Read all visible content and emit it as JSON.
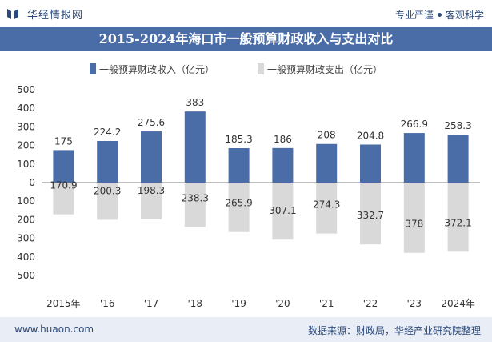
{
  "header": {
    "brand": "华经情报网",
    "tagline_left": "专业严谨",
    "tagline_right": "客观科学"
  },
  "colors": {
    "title_bar": "#4a6da8",
    "income": "#4a6da8",
    "expense": "#d9d9d9",
    "footer_bg": "#e9eef6",
    "brand": "#2c4a7c"
  },
  "footer": {
    "url": "www.huaon.com",
    "source": "数据来源：财政局，华经产业研究院整理"
  },
  "chart_data": {
    "type": "bar",
    "title": "2015-2024年海口市一般预算财政收入与支出对比",
    "categories": [
      "2015年",
      "'16",
      "'17",
      "'18",
      "'19",
      "'20",
      "'21",
      "'22",
      "'23",
      "2024年"
    ],
    "series": [
      {
        "name": "一般预算财政收入（亿元）",
        "values": [
          175,
          224.2,
          275.6,
          383,
          185.3,
          186,
          208,
          204.8,
          266.9,
          258.3
        ]
      },
      {
        "name": "一般预算财政支出（亿元）",
        "values": [
          170.9,
          200.3,
          198.3,
          238.3,
          265.9,
          307.1,
          274.3,
          332.7,
          378,
          372.1
        ]
      }
    ],
    "expense_plotted_below_zero": true,
    "yticks": [
      "500",
      "400",
      "300",
      "200",
      "100",
      "0",
      "100",
      "200",
      "300",
      "400",
      "500"
    ],
    "ylim": [
      -500,
      500
    ],
    "legend_position": "top",
    "grid": false
  }
}
